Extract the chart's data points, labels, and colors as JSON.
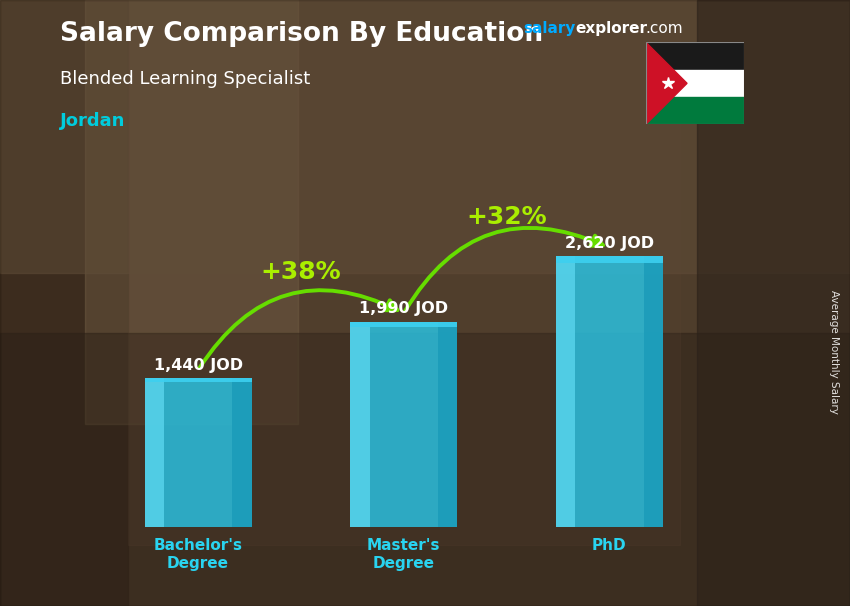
{
  "title_main": "Salary Comparison By Education",
  "title_sub": "Blended Learning Specialist",
  "title_country": "Jordan",
  "ylabel": "Average Monthly Salary",
  "categories": [
    "Bachelor's\nDegree",
    "Master's\nDegree",
    "PhD"
  ],
  "values": [
    1440,
    1990,
    2620
  ],
  "value_labels": [
    "1,440 JOD",
    "1,990 JOD",
    "2,620 JOD"
  ],
  "pct_labels": [
    "+38%",
    "+32%"
  ],
  "bar_face_color": "#29c5e6",
  "bar_left_color": "#5dd8f0",
  "bar_right_color": "#1899b8",
  "bar_top_color": "#3dd0f0",
  "bg_color": "#5a4a3a",
  "overlay_color": "#3a3028",
  "title_color": "#ffffff",
  "subtitle_color": "#ffffff",
  "country_color": "#00ccdd",
  "value_label_color": "#ffffff",
  "pct_label_color": "#aaee00",
  "arrow_color": "#66dd00",
  "watermark_salary_color": "#00aaff",
  "watermark_explorer_color": "#ffffff",
  "ylim": [
    0,
    3400
  ],
  "fig_width": 8.5,
  "fig_height": 6.06,
  "dpi": 100
}
